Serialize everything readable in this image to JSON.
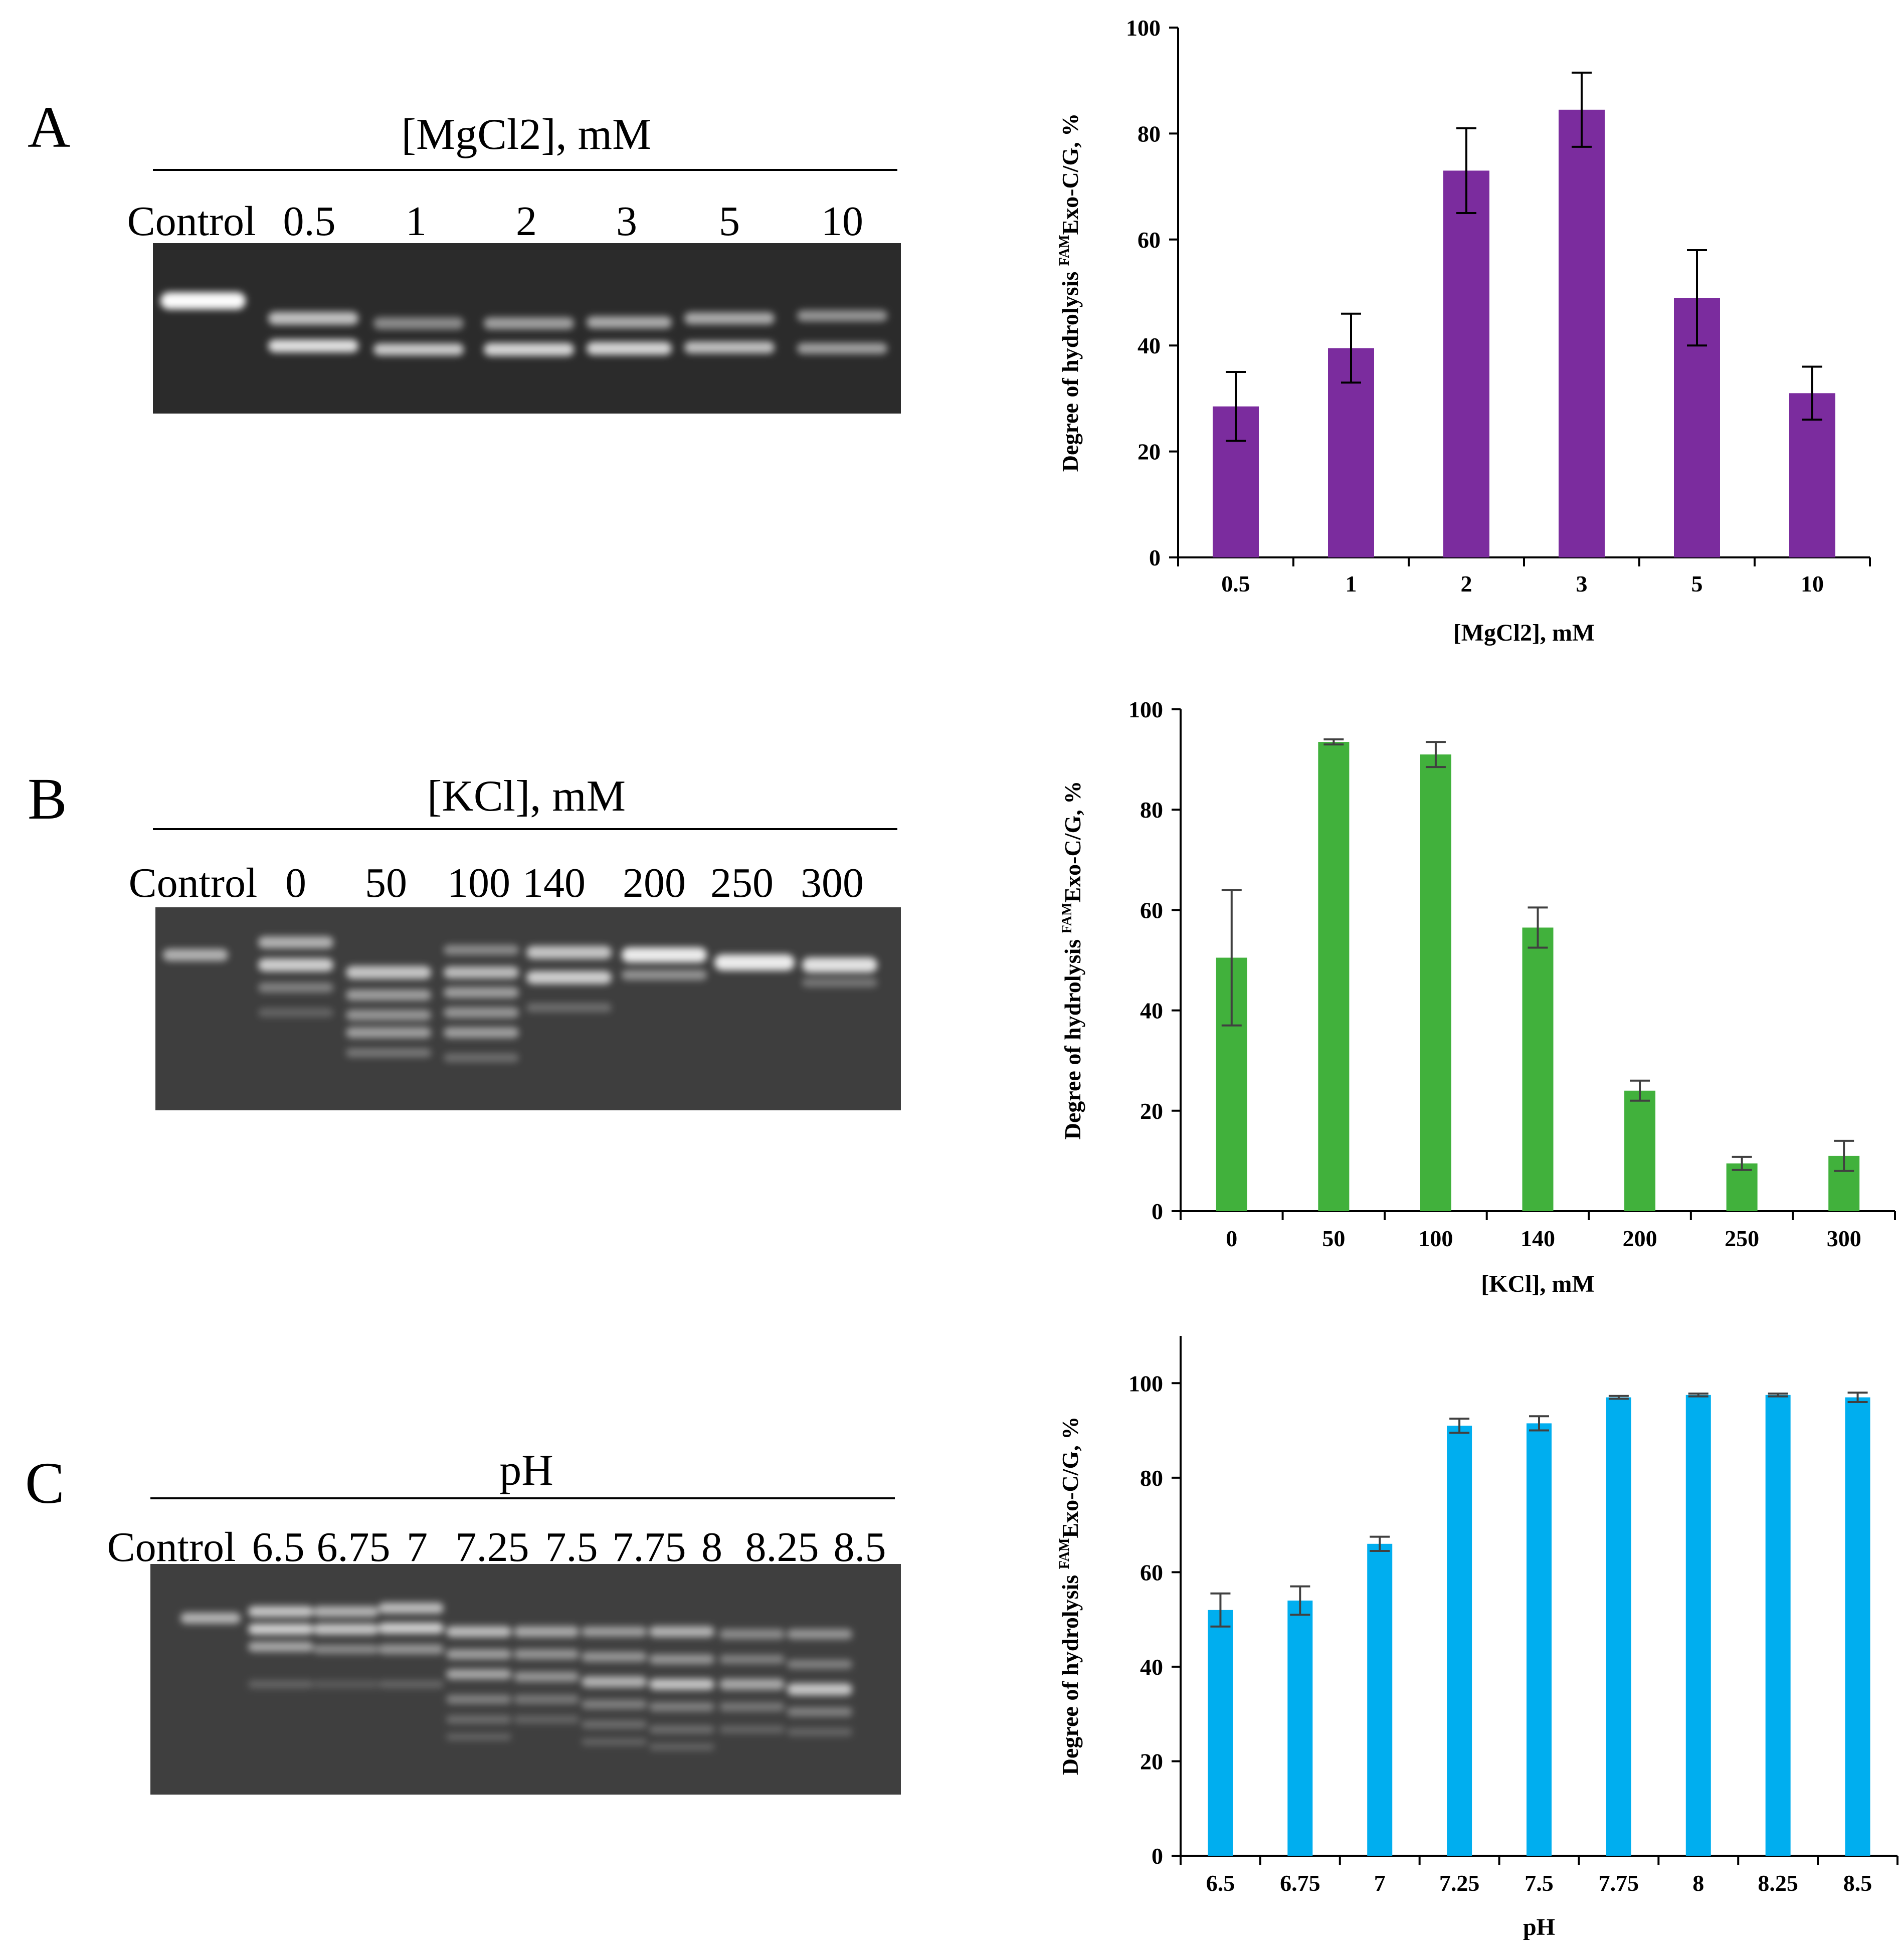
{
  "panels": [
    {
      "letter": "A",
      "gel_title": "[MgCl2], mM",
      "lane_labels": [
        "Control",
        "0.5",
        "1",
        "2",
        "3",
        "5",
        "10"
      ]
    },
    {
      "letter": "B",
      "gel_title": "[KCl], mM",
      "lane_labels": [
        "Control",
        "0",
        "50",
        "100",
        "140",
        "200",
        "250",
        "300"
      ]
    },
    {
      "letter": "C",
      "gel_title": "pH",
      "lane_labels": [
        "Control",
        "6.5",
        "6.75",
        "7",
        "7.25",
        "7.5",
        "7.75",
        "8",
        "8.25",
        "8.5"
      ]
    }
  ],
  "chart_data": [
    {
      "type": "bar",
      "title": "",
      "xlabel": "[MgCl2], mM",
      "ylabel": "Degree of hydrolysis FAMExo-C/G, %",
      "ylabel_pre": "Degree of hydrolysis ",
      "ylabel_sup": "FAM",
      "ylabel_post": "Exo-C/G, %",
      "categories": [
        "0.5",
        "1",
        "2",
        "3",
        "5",
        "10"
      ],
      "values": [
        28.5,
        39.5,
        73,
        84.5,
        49,
        31
      ],
      "errors": [
        6.5,
        6.5,
        8,
        7,
        9,
        5
      ],
      "ylim": [
        0,
        100
      ],
      "yticks": [
        0,
        20,
        40,
        60,
        80,
        100
      ],
      "color": "#7B2C9E",
      "error_color": "#000000"
    },
    {
      "type": "bar",
      "title": "",
      "xlabel": "[KCl], mM",
      "ylabel": "Degree of hydrolysis FAMExo-C/G, %",
      "ylabel_pre": "Degree of hydrolysis ",
      "ylabel_sup": "FAM",
      "ylabel_post": "Exo-C/G, %",
      "categories": [
        "0",
        "50",
        "100",
        "140",
        "200",
        "250",
        "300"
      ],
      "values": [
        50.5,
        93.5,
        91,
        56.5,
        24,
        9.5,
        11
      ],
      "errors": [
        13.5,
        0.5,
        2.5,
        4,
        2,
        1.3,
        3
      ],
      "ylim": [
        0,
        100
      ],
      "yticks": [
        0,
        20,
        40,
        60,
        80,
        100
      ],
      "color": "#41B13C",
      "error_color": "#404040"
    },
    {
      "type": "bar",
      "title": "",
      "xlabel": "pH",
      "ylabel": "Degree of hydrolysis FAMExo-C/G, %",
      "ylabel_pre": "Degree of hydrolysis ",
      "ylabel_sup": "FAM",
      "ylabel_post": "Exo-C/G, %",
      "categories": [
        "6.5",
        "6.75",
        "7",
        "7.25",
        "7.5",
        "7.75",
        "8",
        "8.25",
        "8.5"
      ],
      "values": [
        52,
        54,
        66,
        91,
        91.5,
        97,
        97.5,
        97.5,
        97
      ],
      "errors": [
        3.5,
        3,
        1.5,
        1.5,
        1.5,
        0.3,
        0.3,
        0.3,
        1
      ],
      "ylim": [
        0,
        110
      ],
      "yticks": [
        0,
        20,
        40,
        60,
        80,
        100
      ],
      "color": "#00AEEF",
      "error_color": "#404040"
    }
  ]
}
